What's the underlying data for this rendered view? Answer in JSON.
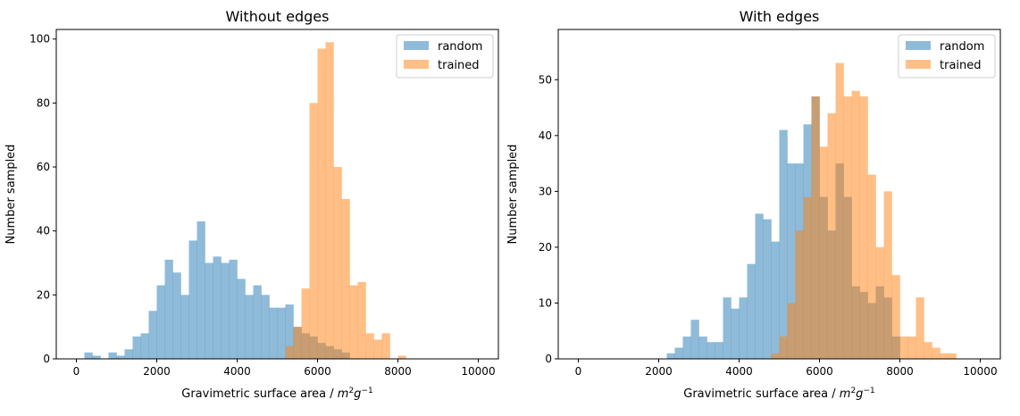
{
  "colors": {
    "random": "#1f77b4",
    "trained": "#ff7f0e"
  },
  "chart_data": [
    {
      "type": "bar",
      "title": "Without edges",
      "xlabel": "Gravimetric surface area / m²g⁻¹",
      "ylabel": "Number sampled",
      "xlim": [
        -500,
        10500
      ],
      "ylim": [
        0,
        103
      ],
      "xticks": [
        0,
        2000,
        4000,
        6000,
        8000,
        10000
      ],
      "yticks": [
        0,
        20,
        40,
        60,
        80,
        100
      ],
      "legend_position": "top-right",
      "series": [
        {
          "name": "random",
          "bins": [
            [
              200,
              400,
              2
            ],
            [
              400,
              600,
              1
            ],
            [
              800,
              1000,
              2
            ],
            [
              1000,
              1200,
              1
            ],
            [
              1200,
              1400,
              3
            ],
            [
              1400,
              1600,
              7
            ],
            [
              1600,
              1800,
              8
            ],
            [
              1800,
              2000,
              15
            ],
            [
              2000,
              2200,
              23
            ],
            [
              2200,
              2400,
              31
            ],
            [
              2400,
              2600,
              27
            ],
            [
              2600,
              2800,
              20
            ],
            [
              2800,
              3000,
              37
            ],
            [
              3000,
              3200,
              43
            ],
            [
              3200,
              3400,
              30
            ],
            [
              3400,
              3600,
              32
            ],
            [
              3600,
              3800,
              30
            ],
            [
              3800,
              4000,
              31
            ],
            [
              4000,
              4200,
              25
            ],
            [
              4200,
              4400,
              20
            ],
            [
              4400,
              4600,
              23
            ],
            [
              4600,
              4800,
              20
            ],
            [
              4800,
              5000,
              16
            ],
            [
              5000,
              5200,
              16
            ],
            [
              5200,
              5400,
              17
            ],
            [
              5400,
              5600,
              10
            ],
            [
              5600,
              5800,
              8
            ],
            [
              5800,
              6000,
              7
            ],
            [
              6000,
              6200,
              5
            ],
            [
              6200,
              6400,
              4
            ],
            [
              6400,
              6600,
              3
            ],
            [
              6600,
              6800,
              2
            ]
          ]
        },
        {
          "name": "trained",
          "bins": [
            [
              5200,
              5400,
              4
            ],
            [
              5400,
              5600,
              10
            ],
            [
              5600,
              5800,
              22
            ],
            [
              5800,
              6000,
              80
            ],
            [
              6000,
              6200,
              97
            ],
            [
              6200,
              6400,
              99
            ],
            [
              6400,
              6600,
              60
            ],
            [
              6600,
              6800,
              50
            ],
            [
              6800,
              7000,
              23
            ],
            [
              7000,
              7200,
              24
            ],
            [
              7200,
              7400,
              8
            ],
            [
              7400,
              7600,
              6
            ],
            [
              7600,
              7800,
              8
            ],
            [
              8000,
              8200,
              1
            ]
          ]
        }
      ]
    },
    {
      "type": "bar",
      "title": "With edges",
      "xlabel": "Gravimetric surface area / m²g⁻¹",
      "ylabel": "Number sampled",
      "xlim": [
        -500,
        10500
      ],
      "ylim": [
        0,
        59
      ],
      "xticks": [
        0,
        2000,
        4000,
        6000,
        8000,
        10000
      ],
      "yticks": [
        0,
        10,
        20,
        30,
        40,
        50
      ],
      "legend_position": "top-right",
      "series": [
        {
          "name": "random",
          "bins": [
            [
              2200,
              2400,
              1
            ],
            [
              2400,
              2600,
              2
            ],
            [
              2600,
              2800,
              4
            ],
            [
              2800,
              3000,
              7
            ],
            [
              3000,
              3200,
              4
            ],
            [
              3200,
              3400,
              3
            ],
            [
              3400,
              3600,
              3
            ],
            [
              3600,
              3800,
              11
            ],
            [
              3800,
              4000,
              9
            ],
            [
              4000,
              4200,
              11
            ],
            [
              4200,
              4400,
              17
            ],
            [
              4400,
              4600,
              26
            ],
            [
              4600,
              4800,
              25
            ],
            [
              4800,
              5000,
              21
            ],
            [
              5000,
              5200,
              41
            ],
            [
              5200,
              5400,
              35
            ],
            [
              5400,
              5600,
              35
            ],
            [
              5600,
              5800,
              42
            ],
            [
              5800,
              6000,
              47
            ],
            [
              6000,
              6200,
              29
            ],
            [
              6200,
              6400,
              23
            ],
            [
              6400,
              6600,
              35
            ],
            [
              6600,
              6800,
              29
            ],
            [
              6800,
              7000,
              13
            ],
            [
              7000,
              7200,
              12
            ],
            [
              7200,
              7400,
              10
            ],
            [
              7400,
              7600,
              13
            ],
            [
              7600,
              7800,
              11
            ],
            [
              7800,
              8000,
              4
            ]
          ]
        },
        {
          "name": "trained",
          "bins": [
            [
              4800,
              5000,
              1
            ],
            [
              5000,
              5200,
              4
            ],
            [
              5200,
              5400,
              10
            ],
            [
              5400,
              5600,
              23
            ],
            [
              5600,
              5800,
              29
            ],
            [
              5800,
              6000,
              47
            ],
            [
              6000,
              6200,
              38
            ],
            [
              6200,
              6400,
              44
            ],
            [
              6400,
              6600,
              53
            ],
            [
              6600,
              6800,
              47
            ],
            [
              6800,
              7000,
              48
            ],
            [
              7000,
              7200,
              47
            ],
            [
              7200,
              7400,
              33
            ],
            [
              7400,
              7600,
              20
            ],
            [
              7600,
              7800,
              30
            ],
            [
              7800,
              8000,
              15
            ],
            [
              8000,
              8200,
              4
            ],
            [
              8200,
              8400,
              4
            ],
            [
              8400,
              8600,
              11
            ],
            [
              8600,
              8800,
              3
            ],
            [
              8800,
              9000,
              2
            ],
            [
              9000,
              9200,
              1
            ],
            [
              9200,
              9400,
              1
            ]
          ]
        }
      ]
    }
  ]
}
